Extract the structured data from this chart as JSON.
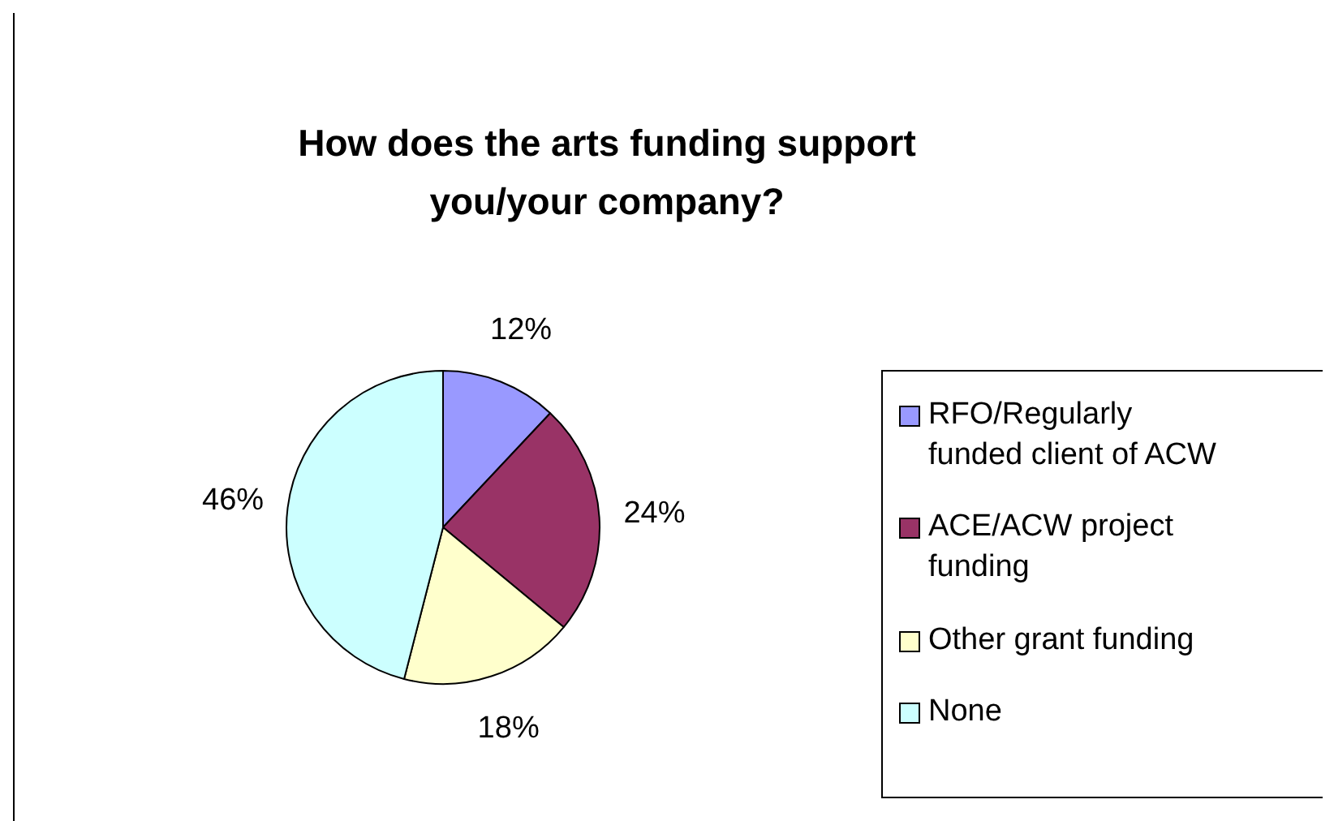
{
  "chart_data": {
    "type": "pie",
    "title": "How does the arts funding support you/your company?",
    "categories": [
      "RFO/Regularly funded client of ACW",
      "ACE/ACW project funding",
      "Other grant funding",
      "None"
    ],
    "values": [
      12,
      24,
      18,
      46
    ],
    "value_labels": [
      "12%",
      "24%",
      "18%",
      "46%"
    ],
    "colors": [
      "#9999ff",
      "#993366",
      "#ffffcc",
      "#ccffff"
    ],
    "legend": "right"
  }
}
